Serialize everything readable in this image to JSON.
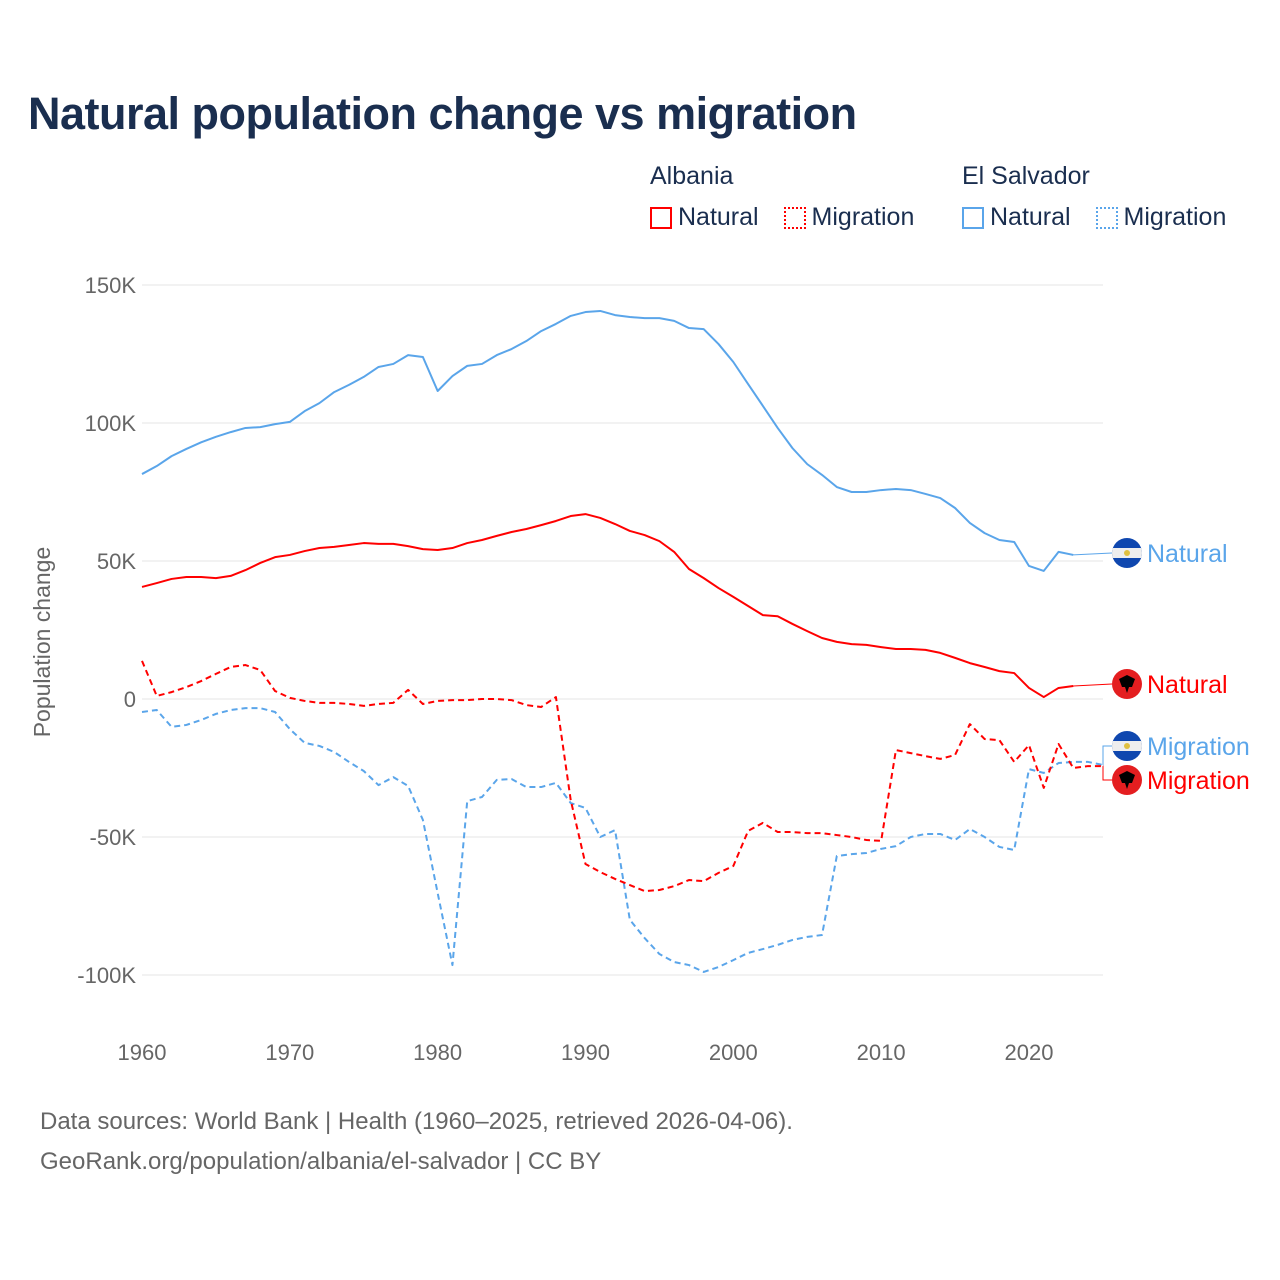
{
  "chart_data": {
    "type": "line",
    "title": "Natural population change vs migration",
    "xlabel": "",
    "ylabel": "Population change",
    "xlim": [
      1960,
      2025
    ],
    "ylim": [
      -110000,
      155000
    ],
    "x_ticks": [
      1960,
      1970,
      1980,
      1990,
      2000,
      2010,
      2020
    ],
    "x_tick_labels": [
      "1960",
      "1970",
      "1980",
      "1990",
      "2000",
      "2010",
      "2020"
    ],
    "y_ticks": [
      150000,
      100000,
      50000,
      0,
      -50000,
      -100000
    ],
    "y_tick_labels": [
      "150K",
      "100K",
      "50K",
      "0",
      "-50K",
      "-100K"
    ],
    "grid": true,
    "legend": {
      "placement": "top-right",
      "groups": [
        {
          "name": "Albania",
          "items": [
            "Natural",
            "Migration"
          ]
        },
        {
          "name": "El Salvador",
          "items": [
            "Natural",
            "Migration"
          ]
        }
      ]
    },
    "series": [
      {
        "name": "El Salvador Natural",
        "country": "El Salvador",
        "kind": "Natural",
        "label": "Natural",
        "color": "#5aa5ea",
        "dash": false,
        "start": 1960,
        "values": [
          81.5,
          84.4,
          88,
          90.6,
          93,
          95,
          96.7,
          98.2,
          98.5,
          99.6,
          100.4,
          104.3,
          107.2,
          111.2,
          113.8,
          116.7,
          120.3,
          121.4,
          124.6,
          123.9,
          111.6,
          117,
          120.7,
          121.4,
          124.6,
          126.8,
          129.7,
          133.3,
          135.9,
          138.8,
          140.2,
          140.6,
          139.1,
          138.4,
          138,
          138,
          137,
          134.4,
          134,
          128.6,
          122.1,
          114.1,
          106.2,
          98.2,
          90.9,
          85.1,
          81.2,
          76.8,
          75,
          75,
          75.7,
          76.1,
          75.7,
          74.3,
          72.8,
          69.2,
          63.8,
          60.1,
          57.6,
          56.9,
          48.2,
          46.4,
          53.3,
          52.2
        ]
      },
      {
        "name": "Albania Natural",
        "country": "Albania",
        "kind": "Natural",
        "label": "Natural",
        "color": "#ff0000",
        "dash": false,
        "start": 1960,
        "values": [
          40.6,
          42,
          43.5,
          44.2,
          44.2,
          43.8,
          44.6,
          46.7,
          49.3,
          51.4,
          52.2,
          53.6,
          54.7,
          55.1,
          55.8,
          56.5,
          56.2,
          56.2,
          55.4,
          54.3,
          54,
          54.7,
          56.5,
          57.6,
          59.1,
          60.5,
          61.6,
          63,
          64.5,
          66.3,
          67,
          65.6,
          63.4,
          60.9,
          59.4,
          57.2,
          53.3,
          47.1,
          43.8,
          40.2,
          37,
          33.7,
          30.4,
          30,
          27.2,
          24.6,
          22.1,
          20.7,
          19.9,
          19.6,
          18.8,
          18.1,
          18.1,
          17.8,
          16.7,
          14.9,
          13,
          11.6,
          10.1,
          9.4,
          4,
          0.7,
          4,
          4.7
        ]
      },
      {
        "name": "El Salvador Migration",
        "country": "El Salvador",
        "kind": "Migration",
        "label": "Migration",
        "color": "#5aa5ea",
        "dash": true,
        "start": 1960,
        "values": [
          -4.7,
          -4,
          -10.1,
          -9.4,
          -7.6,
          -5.4,
          -4,
          -3.3,
          -3.3,
          -4.7,
          -10.9,
          -15.9,
          -17,
          -19.2,
          -22.8,
          -26.1,
          -31.2,
          -28.3,
          -31.5,
          -43.8,
          -70.3,
          -96.4,
          -37,
          -35.5,
          -29.3,
          -29,
          -31.9,
          -31.9,
          -30.4,
          -37.7,
          -39.5,
          -50,
          -47.5,
          -80,
          -86.6,
          -92.4,
          -95.3,
          -96.4,
          -98.9,
          -97.1,
          -94.6,
          -92,
          -90.6,
          -89.1,
          -87.3,
          -86.2,
          -85.5,
          -56.9,
          -56.2,
          -55.8,
          -54.3,
          -53.3,
          -50,
          -48.9,
          -48.9,
          -51.1,
          -47.1,
          -50,
          -53.6,
          -54.7,
          -25.4,
          -26.8,
          -23.2,
          -22.8,
          -22.8,
          -23.9
        ]
      },
      {
        "name": "Albania Migration",
        "country": "Albania",
        "kind": "Migration",
        "label": "Migration",
        "color": "#ff0000",
        "dash": true,
        "start": 1960,
        "values": [
          13.8,
          1.1,
          2.5,
          4.3,
          6.5,
          9.1,
          11.6,
          12.3,
          10.5,
          2.9,
          0.4,
          -0.7,
          -1.4,
          -1.4,
          -1.8,
          -2.5,
          -1.8,
          -1.4,
          3.3,
          -1.8,
          -0.7,
          -0.4,
          -0.4,
          0,
          0,
          -0.4,
          -2.2,
          -2.9,
          0.7,
          -36.6,
          -59.8,
          -62.7,
          -65.2,
          -67.4,
          -69.6,
          -69.2,
          -67.8,
          -65.6,
          -66,
          -63,
          -60.5,
          -47.8,
          -44.9,
          -48.2,
          -48.2,
          -48.6,
          -48.6,
          -49.3,
          -50,
          -51.1,
          -51.4,
          -18.5,
          -19.6,
          -20.7,
          -21.7,
          -20.3,
          -9.1,
          -14.5,
          -14.9,
          -22.8,
          -16.7,
          -32.2,
          -16.3,
          -25,
          -24.3,
          -24.3
        ]
      }
    ],
    "value_unit": "thousands"
  },
  "legend": {
    "albania": {
      "name": "Albania",
      "natural": "Natural",
      "migration": "Migration"
    },
    "el_salvador": {
      "name": "El Salvador",
      "natural": "Natural",
      "migration": "Migration"
    }
  },
  "footer": {
    "sources": "Data sources: World Bank | Health (1960–2025, retrieved 2026-04-06).",
    "credit": "GeoRank.org/population/albania/el-salvador | CC BY"
  },
  "colors": {
    "albania": "#ff0000",
    "el_salvador": "#5aa5ea",
    "title": "#1a2e4f",
    "axis_text": "#666666",
    "grid": "#e6e6e6"
  }
}
